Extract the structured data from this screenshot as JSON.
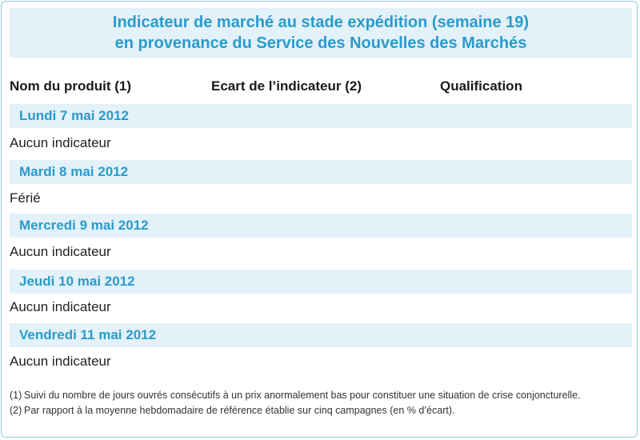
{
  "title": {
    "line1": "Indicateur de marché au stade expédition (semaine 19)",
    "line2": "en provenance du Service des Nouvelles des Marchés"
  },
  "columns": {
    "product": "Nom du produit (1)",
    "deviation": "Ecart de l’indicateur (2)",
    "qualification": "Qualification"
  },
  "days": [
    {
      "label": "Lundi 7 mai 2012",
      "content": "Aucun indicateur"
    },
    {
      "label": "Mardi 8 mai 2012",
      "content": "Férié"
    },
    {
      "label": "Mercredi 9 mai 2012",
      "content": "Aucun indicateur"
    },
    {
      "label": "Jeudi 10 mai 2012",
      "content": "Aucun indicateur"
    },
    {
      "label": "Vendredi 11 mai 2012",
      "content": "Aucun indicateur"
    }
  ],
  "footnotes": [
    {
      "num": "(1)",
      "text": "Suivi du nombre de jours ouvrés consécutifs à un prix anormalement bas pour constituer une situation de crise conjoncturelle."
    },
    {
      "num": "(2)",
      "text": "Par rapport à la moyenne hebdomadaire de référence établie sur cinq campagnes (en % d’écart)."
    }
  ],
  "colors": {
    "accent": "#2a9bcc",
    "band": "#e3f1f8",
    "border": "#8fc9e2"
  }
}
